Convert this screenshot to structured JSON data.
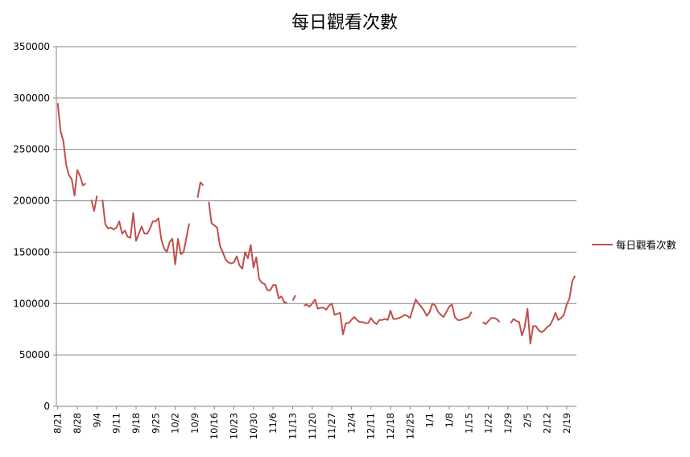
{
  "chart_data": {
    "type": "line",
    "title": "每日觀看次數",
    "xlabel": "",
    "ylabel": "",
    "ylim": [
      0,
      350000
    ],
    "yticks": [
      0,
      50000,
      100000,
      150000,
      200000,
      250000,
      300000,
      350000
    ],
    "xticks": [
      "8/21",
      "8/28",
      "9/4",
      "9/11",
      "9/18",
      "9/25",
      "10/2",
      "10/9",
      "10/16",
      "10/23",
      "10/30",
      "11/6",
      "11/13",
      "11/20",
      "11/27",
      "12/4",
      "12/11",
      "12/18",
      "12/25",
      "1/1",
      "1/8",
      "1/15",
      "1/22",
      "1/29",
      "2/5",
      "2/12",
      "2/19"
    ],
    "x_start": "8/21",
    "grid": "horizontal",
    "legend": "right",
    "colors": {
      "series": "#c0504d",
      "grid": "#868686",
      "axis": "#868686"
    },
    "series": [
      {
        "name": "每日觀看次數",
        "values": [
          295000,
          268000,
          258000,
          235000,
          225000,
          221000,
          205000,
          230000,
          224000,
          215000,
          217000,
          null,
          201000,
          190000,
          205000,
          null,
          201000,
          177000,
          173000,
          174000,
          172000,
          174000,
          180000,
          168000,
          171000,
          165000,
          164000,
          188000,
          161000,
          168000,
          175000,
          168000,
          168000,
          173000,
          180000,
          180000,
          183000,
          163000,
          154000,
          150000,
          160000,
          163000,
          138000,
          163000,
          148000,
          150000,
          164000,
          178000,
          null,
          null,
          203000,
          218000,
          215000,
          null,
          199000,
          178000,
          176000,
          174000,
          156000,
          150000,
          143000,
          140000,
          139000,
          140000,
          146000,
          137000,
          134000,
          150000,
          144000,
          157000,
          135000,
          145000,
          124000,
          120000,
          119000,
          113000,
          113000,
          118000,
          118000,
          105000,
          107000,
          101000,
          101000,
          null,
          103000,
          108000,
          null,
          null,
          98000,
          99000,
          97000,
          100000,
          104000,
          95000,
          96000,
          96000,
          94000,
          98000,
          100000,
          89000,
          90000,
          91000,
          70000,
          81000,
          81000,
          84000,
          87000,
          84000,
          82000,
          82000,
          81000,
          81000,
          86000,
          82000,
          80000,
          84000,
          84000,
          85000,
          84000,
          93000,
          85000,
          85000,
          86000,
          87000,
          89000,
          88000,
          86000,
          95000,
          104000,
          100000,
          97000,
          93000,
          88000,
          92000,
          100000,
          98000,
          92000,
          89000,
          87000,
          92000,
          97000,
          99000,
          87000,
          84000,
          84000,
          85000,
          86000,
          87000,
          92000,
          null,
          null,
          null,
          82000,
          80000,
          83000,
          86000,
          86000,
          85000,
          82000,
          null,
          null,
          null,
          81000,
          85000,
          83000,
          82000,
          69000,
          77000,
          95000,
          61000,
          78000,
          78000,
          74000,
          72000,
          74000,
          77000,
          79000,
          84000,
          91000,
          84000,
          86000,
          89000,
          99000,
          105000,
          122000,
          127000
        ]
      }
    ]
  }
}
